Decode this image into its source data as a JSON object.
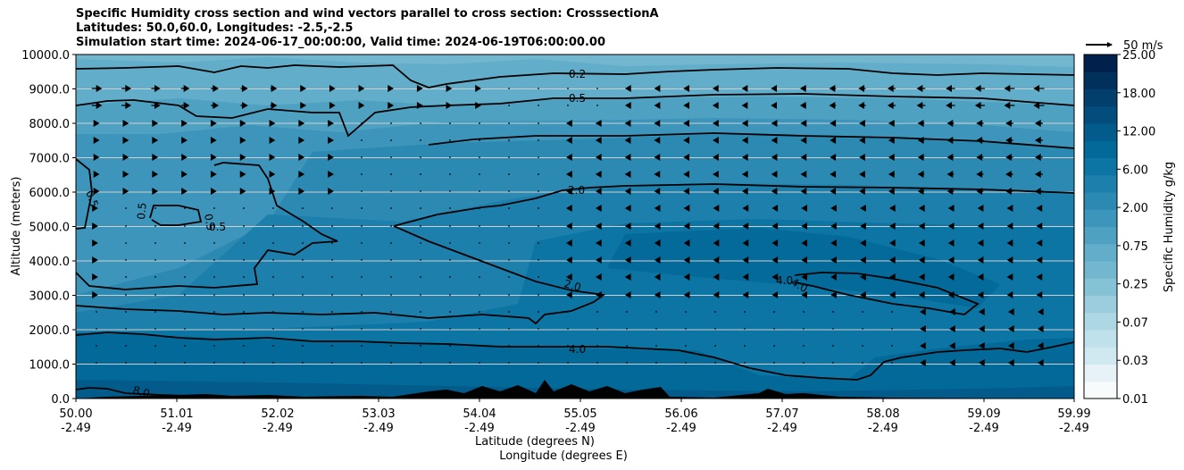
{
  "chart_data": {
    "type": "heatmap",
    "title_lines": [
      "Specific Humidity cross section and wind vectors parallel to cross section: CrosssectionA",
      "Latitudes: 50.0,60.0, Longitudes: -2.5,-2.5",
      "Simulation start time: 2024-06-17_00:00:00, Valid time: 2024-06-19T06:00:00.00"
    ],
    "ylabel": "Altitude (meters)",
    "xlabel_lat": "Latitude (degrees N)",
    "xlabel_lon": "Longitude (degrees E)",
    "ylim": [
      0,
      10000
    ],
    "yticks": [
      "0.0",
      "1000.0",
      "2000.0",
      "3000.0",
      "4000.0",
      "5000.0",
      "6000.0",
      "7000.0",
      "8000.0",
      "9000.0",
      "10000.0"
    ],
    "xticks_lat": [
      "50.00",
      "51.01",
      "52.02",
      "53.03",
      "54.04",
      "55.05",
      "56.06",
      "57.07",
      "58.08",
      "59.09",
      "59.99"
    ],
    "xticks_lon": [
      "-2.49",
      "-2.49",
      "-2.49",
      "-2.49",
      "-2.49",
      "-2.49",
      "-2.49",
      "-2.49",
      "-2.49",
      "-2.49",
      "-2.49"
    ],
    "colorbar_label": "Specific Humidity g/kg",
    "colorbar_ticks": [
      "0.01",
      "0.03",
      "0.07",
      "0.25",
      "0.75",
      "2.00",
      "6.00",
      "12.00",
      "18.00",
      "25.00"
    ],
    "wind_reference_label": "50 m/s",
    "contour_labels": [
      "0.2",
      "0.5",
      "2.0",
      "0.5",
      "0.5",
      "0.5",
      "0.5",
      "2.0",
      "4.0",
      "4.0",
      "4.0",
      "8.0"
    ],
    "colors": {
      "c1": "#f7fbfc",
      "c2": "#e6f2f5",
      "c3": "#d0e8ef",
      "c4": "#bfe1eb",
      "c5": "#aed7e4",
      "c6": "#9bcddc",
      "c7": "#86c2d6",
      "c8": "#73b7cf",
      "c9": "#62adc9",
      "c10": "#4fa1c2",
      "c11": "#3d95bb",
      "c12": "#2b89b2",
      "c13": "#1d7fab",
      "c14": "#0c75a4",
      "c15": "#026998",
      "c16": "#025b8a",
      "c17": "#024d7b",
      "c18": "#023f6c",
      "c19": "#02305c",
      "c20": "#01204c"
    }
  }
}
